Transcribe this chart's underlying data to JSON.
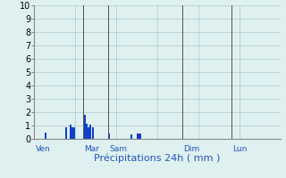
{
  "xlabel": "Précipitations 24h ( mm )",
  "background_color": "#dff0f0",
  "bar_color": "#1040cc",
  "grid_color": "#aacccc",
  "vline_color": "#505050",
  "label_color": "#2255bb",
  "ylim": [
    0,
    10
  ],
  "yticks": [
    0,
    1,
    2,
    3,
    4,
    5,
    6,
    7,
    8,
    9,
    10
  ],
  "day_labels": [
    "Ven",
    "Mar",
    "Sam",
    "Dim",
    "Lun"
  ],
  "day_positions": [
    0.0,
    0.24,
    0.36,
    0.72,
    0.96
  ],
  "xlim": [
    0,
    1.2
  ],
  "bar_data": [
    [
      0.055,
      0.5
    ],
    [
      0.155,
      0.85
    ],
    [
      0.175,
      1.05
    ],
    [
      0.185,
      0.85
    ],
    [
      0.195,
      0.85
    ],
    [
      0.245,
      1.8
    ],
    [
      0.255,
      1.15
    ],
    [
      0.265,
      0.9
    ],
    [
      0.275,
      1.05
    ],
    [
      0.285,
      0.85
    ],
    [
      0.365,
      0.42
    ],
    [
      0.475,
      0.32
    ],
    [
      0.505,
      0.42
    ],
    [
      0.515,
      0.42
    ]
  ],
  "bar_width": 0.009
}
